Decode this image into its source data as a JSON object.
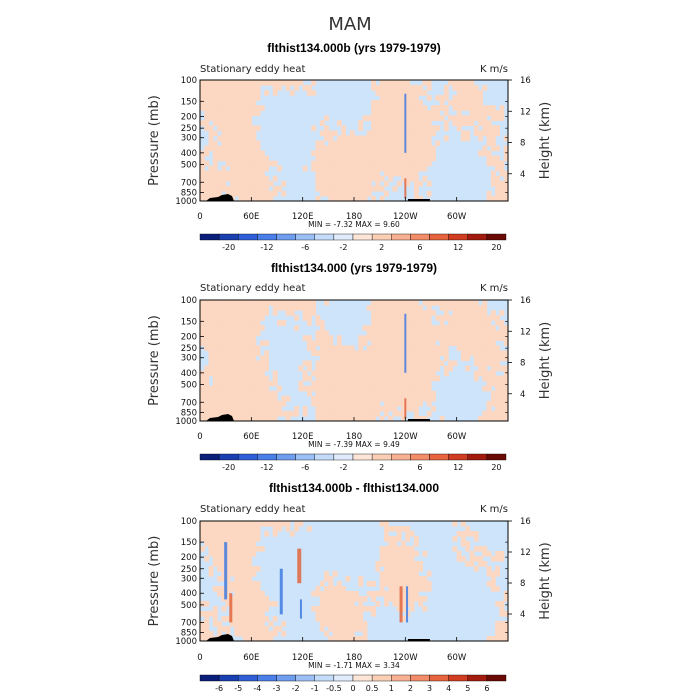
{
  "figure": {
    "season_title": "MAM"
  },
  "colors": {
    "pos_light": "#fcd7c2",
    "neg_light": "#cde4fa",
    "strong_pos": "#e2663f",
    "strong_neg": "#3f7be0",
    "topo": "#000000"
  },
  "chart_data": [
    {
      "type": "heatmap",
      "title": "flthist134.000b (yrs 1979-1979)",
      "left_label": "Stationary eddy heat",
      "right_label": "K m/s",
      "xlabel": "",
      "ylabel": "Pressure (mb)",
      "ylabel_right": "Height (km)",
      "x_ticks": [
        "0",
        "60E",
        "120E",
        "180",
        "120W",
        "60W"
      ],
      "x_tick_values": [
        0,
        60,
        120,
        180,
        240,
        300
      ],
      "xlim": [
        0,
        360
      ],
      "y_ticks": [
        "100",
        "150",
        "200",
        "250",
        "300",
        "400",
        "500",
        "700",
        "850",
        "1000"
      ],
      "y_tick_values": [
        100,
        150,
        200,
        250,
        300,
        400,
        500,
        700,
        850,
        1000
      ],
      "ylim": [
        1000,
        100
      ],
      "right_ticks": [
        "4",
        "8",
        "12",
        "16"
      ],
      "right_tick_values": [
        4,
        8,
        12,
        16
      ],
      "stats": "MIN =   -7.32   MAX =    9.60",
      "colorbar_labels": [
        "-20",
        "-12",
        "-6",
        "-2",
        "2",
        "6",
        "12",
        "20"
      ],
      "mode": "base"
    },
    {
      "type": "heatmap",
      "title": "flthist134.000 (yrs 1979-1979)",
      "left_label": "Stationary eddy heat",
      "right_label": "K m/s",
      "xlabel": "",
      "ylabel": "Pressure (mb)",
      "ylabel_right": "Height (km)",
      "x_ticks": [
        "0",
        "60E",
        "120E",
        "180",
        "120W",
        "60W"
      ],
      "x_tick_values": [
        0,
        60,
        120,
        180,
        240,
        300
      ],
      "xlim": [
        0,
        360
      ],
      "y_ticks": [
        "100",
        "150",
        "200",
        "250",
        "300",
        "400",
        "500",
        "700",
        "850",
        "1000"
      ],
      "y_tick_values": [
        100,
        150,
        200,
        250,
        300,
        400,
        500,
        700,
        850,
        1000
      ],
      "ylim": [
        1000,
        100
      ],
      "right_ticks": [
        "4",
        "8",
        "12",
        "16"
      ],
      "right_tick_values": [
        4,
        8,
        12,
        16
      ],
      "stats": "MIN =   -7.39   MAX =    9.49",
      "colorbar_labels": [
        "-20",
        "-12",
        "-6",
        "-2",
        "2",
        "6",
        "12",
        "20"
      ],
      "mode": "base2"
    },
    {
      "type": "heatmap",
      "title": "flthist134.000b - flthist134.000",
      "left_label": "Stationary eddy heat",
      "right_label": "K m/s",
      "xlabel": "",
      "ylabel": "Pressure (mb)",
      "ylabel_right": "Height (km)",
      "x_ticks": [
        "0",
        "60E",
        "120E",
        "180",
        "120W",
        "60W"
      ],
      "x_tick_values": [
        0,
        60,
        120,
        180,
        240,
        300
      ],
      "xlim": [
        0,
        360
      ],
      "y_ticks": [
        "100",
        "150",
        "200",
        "250",
        "300",
        "400",
        "500",
        "700",
        "850",
        "1000"
      ],
      "y_tick_values": [
        100,
        150,
        200,
        250,
        300,
        400,
        500,
        700,
        850,
        1000
      ],
      "ylim": [
        1000,
        100
      ],
      "right_ticks": [
        "4",
        "8",
        "12",
        "16"
      ],
      "right_tick_values": [
        4,
        8,
        12,
        16
      ],
      "stats": "MIN =   -1.71   MAX =    3.34",
      "colorbar_labels": [
        "-6",
        "-5",
        "-4",
        "-3",
        "-2",
        "-1",
        "-0.5",
        "0",
        "0.5",
        "1",
        "2",
        "3",
        "4",
        "5",
        "6"
      ],
      "mode": "diff"
    }
  ]
}
